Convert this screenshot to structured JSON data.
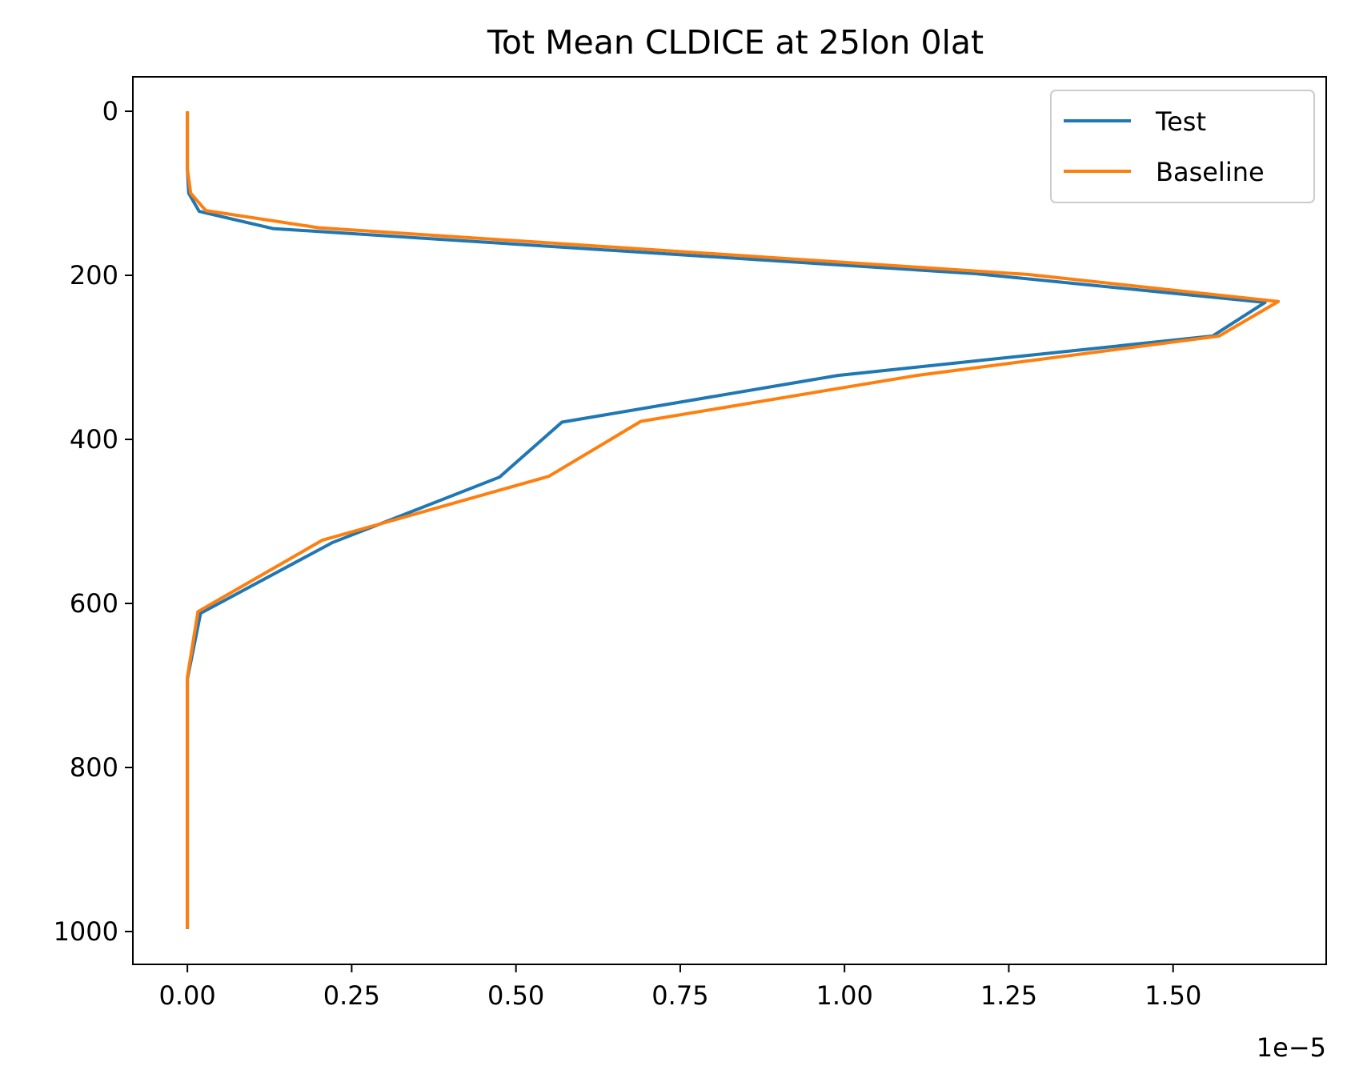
{
  "chart_data": {
    "type": "line",
    "title": "Tot Mean CLDICE at 25lon 0lat",
    "xlabel": "",
    "ylabel": "",
    "x_offset_label": "1e−5",
    "x_scale_factor": 1e-05,
    "xlim": [
      -0.083,
      1.733
    ],
    "ylim": [
      1040,
      -42
    ],
    "y_inverted": true,
    "grid": false,
    "legend_position": "upper right",
    "x_ticks": [
      {
        "value": 0.0,
        "label": "0.00"
      },
      {
        "value": 0.25,
        "label": "0.25"
      },
      {
        "value": 0.5,
        "label": "0.50"
      },
      {
        "value": 0.75,
        "label": "0.75"
      },
      {
        "value": 1.0,
        "label": "1.00"
      },
      {
        "value": 1.25,
        "label": "1.25"
      },
      {
        "value": 1.5,
        "label": "1.50"
      }
    ],
    "y_ticks": [
      {
        "value": 0,
        "label": "0"
      },
      {
        "value": 200,
        "label": "200"
      },
      {
        "value": 400,
        "label": "400"
      },
      {
        "value": 600,
        "label": "600"
      },
      {
        "value": 800,
        "label": "800"
      },
      {
        "value": 1000,
        "label": "1000"
      }
    ],
    "series": [
      {
        "name": "Test",
        "color": "#1f77b4",
        "points": [
          {
            "x": 0.0,
            "y": 2
          },
          {
            "x": 0.0,
            "y": 30
          },
          {
            "x": 0.0,
            "y": 50
          },
          {
            "x": 0.0,
            "y": 70
          },
          {
            "x": 0.002,
            "y": 100
          },
          {
            "x": 0.018,
            "y": 122
          },
          {
            "x": 0.13,
            "y": 143
          },
          {
            "x": 1.2,
            "y": 198
          },
          {
            "x": 1.64,
            "y": 233
          },
          {
            "x": 1.56,
            "y": 274
          },
          {
            "x": 0.99,
            "y": 322
          },
          {
            "x": 0.57,
            "y": 379
          },
          {
            "x": 0.475,
            "y": 446
          },
          {
            "x": 0.22,
            "y": 526
          },
          {
            "x": 0.02,
            "y": 612
          },
          {
            "x": 0.0,
            "y": 692
          },
          {
            "x": 0.0,
            "y": 775
          },
          {
            "x": 0.0,
            "y": 850
          },
          {
            "x": 0.0,
            "y": 925
          },
          {
            "x": 0.0,
            "y": 995
          }
        ]
      },
      {
        "name": "Baseline",
        "color": "#ff7f0e",
        "points": [
          {
            "x": 0.0,
            "y": 2
          },
          {
            "x": 0.0,
            "y": 30
          },
          {
            "x": 0.0,
            "y": 50
          },
          {
            "x": 0.0,
            "y": 70
          },
          {
            "x": 0.005,
            "y": 100
          },
          {
            "x": 0.028,
            "y": 121
          },
          {
            "x": 0.2,
            "y": 142
          },
          {
            "x": 1.28,
            "y": 199
          },
          {
            "x": 1.66,
            "y": 232
          },
          {
            "x": 1.57,
            "y": 274
          },
          {
            "x": 1.11,
            "y": 322
          },
          {
            "x": 0.69,
            "y": 378
          },
          {
            "x": 0.55,
            "y": 445
          },
          {
            "x": 0.205,
            "y": 523
          },
          {
            "x": 0.016,
            "y": 610
          },
          {
            "x": 0.0,
            "y": 690
          },
          {
            "x": 0.0,
            "y": 775
          },
          {
            "x": 0.0,
            "y": 850
          },
          {
            "x": 0.0,
            "y": 925
          },
          {
            "x": 0.0,
            "y": 995
          }
        ]
      }
    ]
  }
}
